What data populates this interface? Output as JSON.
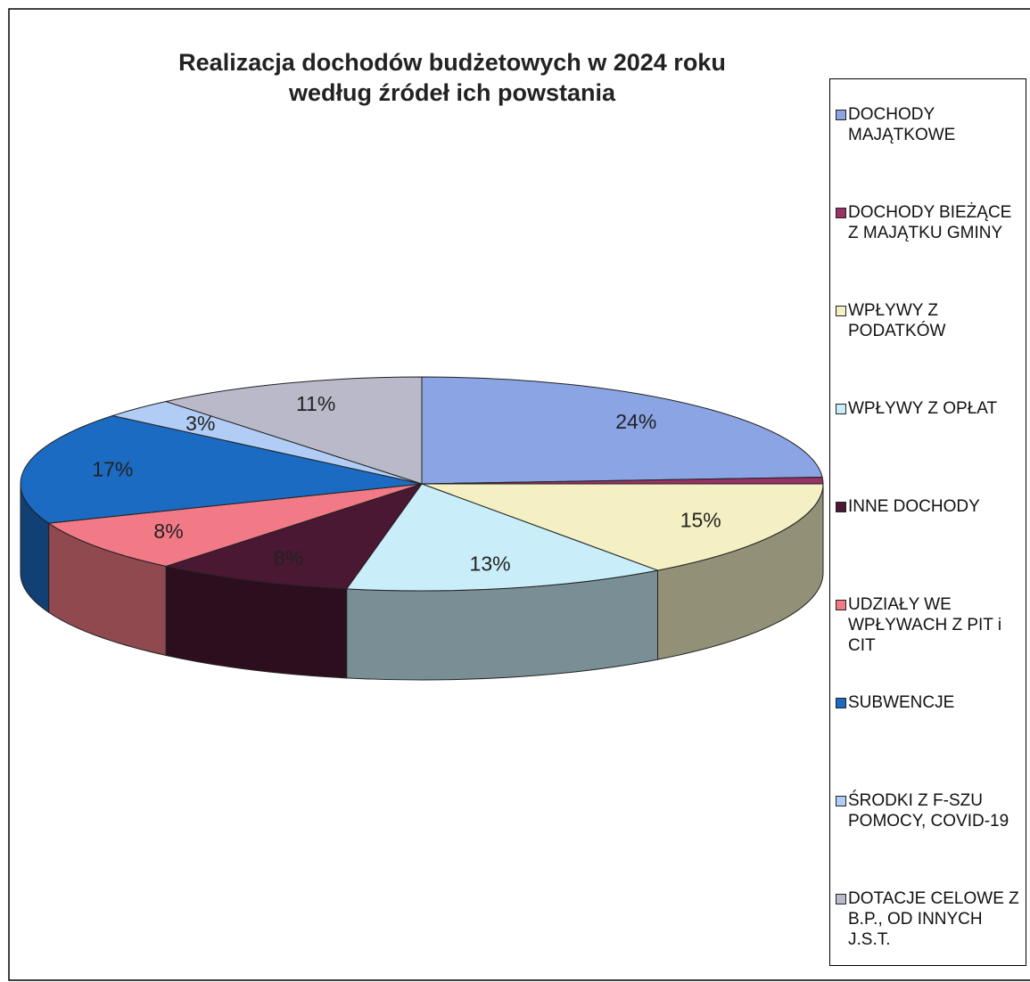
{
  "chart_data": {
    "type": "pie",
    "title": "Realizacja dochodów budżetowych w 2024 roku",
    "subtitle": "według źródeł ich powstania",
    "categories": [
      "DOCHODY MAJĄTKOWE",
      "DOCHODY BIEŻĄCE Z MAJĄTKU GMINY",
      "WPŁYWY Z PODATKÓW",
      "WPŁYWY Z OPŁAT",
      "INNE DOCHODY",
      "UDZIAŁY WE WPŁYWACH Z PIT i CIT",
      "SUBWENCJE",
      "ŚRODKI Z F-SZU POMOCY, COVID-19",
      "DOTACJE CELOWE Z B.P., OD INNYCH J.S.T."
    ],
    "values": [
      24,
      1,
      15,
      13,
      8,
      8,
      17,
      3,
      11
    ],
    "value_labels": [
      "24%",
      null,
      "15%",
      "13%",
      "8%",
      "8%",
      "17%",
      "3%",
      "11%"
    ],
    "colors": [
      "#8aa4e4",
      "#993366",
      "#f4f0c4",
      "#c9eef9",
      "#4a1832",
      "#f27a86",
      "#1b6bc2",
      "#b2cdf5",
      "#b9b9c9"
    ],
    "legend": "right"
  }
}
